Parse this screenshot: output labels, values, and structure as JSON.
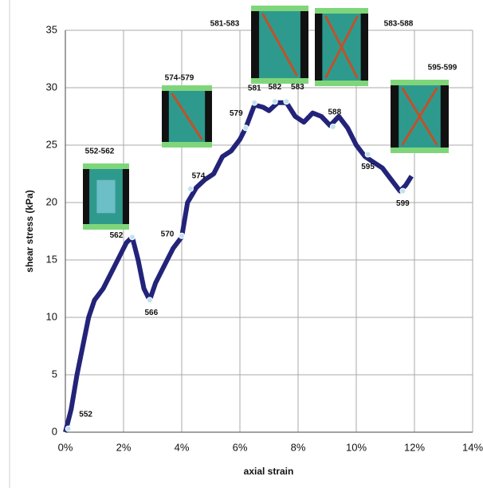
{
  "chart_data": {
    "type": "line",
    "xlabel": "axial strain",
    "ylabel": "shear stress (kPa)",
    "xlim": [
      0,
      14
    ],
    "ylim": [
      0,
      35
    ],
    "xticks": [
      {
        "value": 0,
        "label": "0%"
      },
      {
        "value": 2,
        "label": "2%"
      },
      {
        "value": 4,
        "label": "4%"
      },
      {
        "value": 6,
        "label": "6%"
      },
      {
        "value": 8,
        "label": "8%"
      },
      {
        "value": 10,
        "label": "10%"
      },
      {
        "value": 12,
        "label": "12%"
      },
      {
        "value": 14,
        "label": "14%"
      }
    ],
    "yticks": [
      0,
      5,
      10,
      15,
      20,
      25,
      30,
      35
    ],
    "grid": true,
    "series": [
      {
        "color": "#23237a",
        "x": [
          0,
          0.2,
          0.4,
          0.6,
          0.8,
          1.0,
          1.3,
          1.6,
          1.9,
          2.1,
          2.3,
          2.5,
          2.7,
          2.9,
          3.1,
          3.4,
          3.7,
          4.0,
          4.2,
          4.5,
          4.8,
          5.1,
          5.4,
          5.7,
          6.0,
          6.2,
          6.5,
          6.8,
          7.0,
          7.3,
          7.6,
          7.9,
          8.2,
          8.5,
          8.8,
          9.1,
          9.4,
          9.7,
          10.0,
          10.3,
          10.6,
          10.9,
          11.2,
          11.5,
          11.7,
          11.9
        ],
        "values": [
          0,
          2,
          5,
          7.5,
          10,
          11.5,
          12.5,
          14,
          15.5,
          16.5,
          17,
          15,
          12.5,
          11.5,
          13,
          14.5,
          16,
          17,
          20,
          21.3,
          22,
          22.5,
          24,
          24.5,
          25.5,
          26.5,
          28.5,
          28.3,
          28,
          28.7,
          28.7,
          27.5,
          27,
          27.8,
          27.5,
          26.7,
          27.5,
          26.5,
          25,
          24,
          23.5,
          23,
          22,
          21,
          21.5,
          22.3
        ]
      }
    ],
    "annotations": [
      {
        "label": "552",
        "x": 0.1,
        "y": 0.3
      },
      {
        "label": "562",
        "x": 2.3,
        "y": 17
      },
      {
        "label": "566",
        "x": 2.9,
        "y": 11.5
      },
      {
        "label": "570",
        "x": 4.0,
        "y": 17.1
      },
      {
        "label": "574",
        "x": 4.3,
        "y": 21.2
      },
      {
        "label": "579",
        "x": 6.2,
        "y": 26.5
      },
      {
        "label": "581",
        "x": 6.5,
        "y": 28.7
      },
      {
        "label": "582",
        "x": 7.2,
        "y": 28.8
      },
      {
        "label": "583",
        "x": 7.6,
        "y": 28.8
      },
      {
        "label": "588",
        "x": 9.2,
        "y": 26.6
      },
      {
        "label": "595",
        "x": 10.4,
        "y": 24.2
      },
      {
        "label": "599",
        "x": 11.6,
        "y": 21
      }
    ],
    "insets": [
      "552-562",
      "574-579",
      "581-583",
      "583-588",
      "595-599"
    ]
  }
}
